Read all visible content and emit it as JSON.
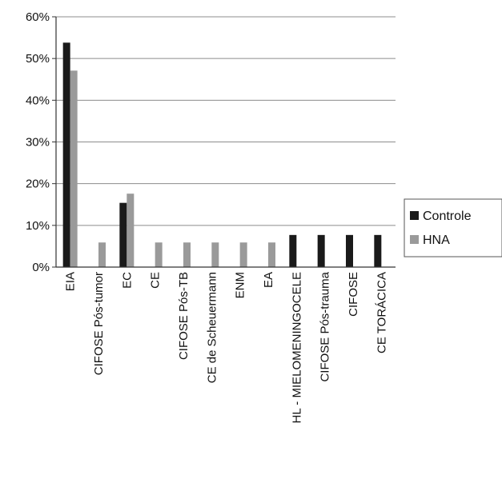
{
  "chart_data": {
    "type": "bar",
    "categories": [
      "EIA",
      "CIFOSE Pós-tumor",
      "EC",
      "CE",
      "CIFOSE Pós-TB",
      "CE de Scheuermann",
      "ENM",
      "EA",
      "HL - MIELOMENINGOCELE",
      "CIFOSE Pós-trauma",
      "CIFOSE",
      "CE TORÁCICA"
    ],
    "series": [
      {
        "name": "Controle",
        "color": "#1a1a1a",
        "values": [
          53.8,
          0,
          15.4,
          0,
          0,
          0,
          0,
          0,
          7.7,
          7.7,
          7.7,
          7.7
        ]
      },
      {
        "name": "HNA",
        "color": "#9a9a9a",
        "values": [
          47.1,
          5.9,
          17.6,
          5.9,
          5.9,
          5.9,
          5.9,
          5.9,
          0,
          0,
          0,
          0
        ]
      }
    ],
    "yticks": [
      "0%",
      "10%",
      "20%",
      "30%",
      "40%",
      "50%",
      "60%"
    ],
    "ylim": [
      0,
      60
    ],
    "grid": true,
    "legend_position": "right",
    "title": "",
    "xlabel": "",
    "ylabel": ""
  }
}
